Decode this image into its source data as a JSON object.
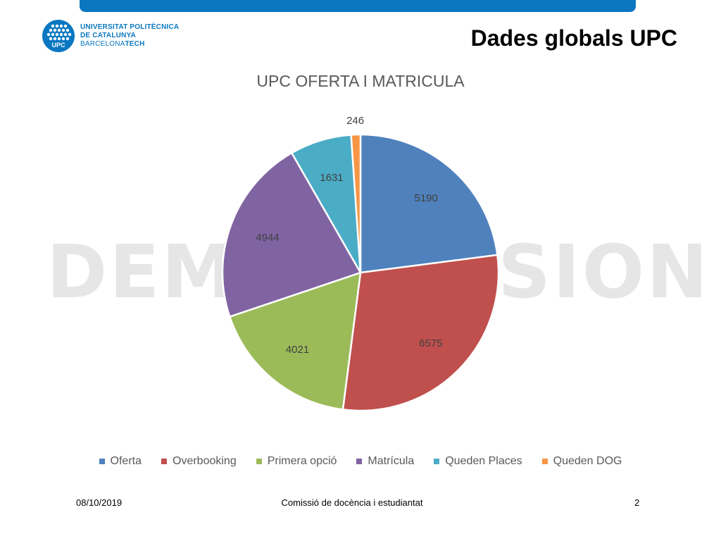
{
  "header": {
    "logo": {
      "line1": "UNIVERSITAT POLITÈCNICA",
      "line2": "DE CATALUNYA",
      "line3_a": "BARCELONA",
      "line3_b": "TECH",
      "emblem_text": "UPC"
    },
    "slide_title": "Dades globals UPC"
  },
  "watermark": "DEMO VERSION",
  "chart_data": {
    "type": "pie",
    "title": "UPC OFERTA I MATRICULA",
    "categories": [
      "Oferta",
      "Overbooking",
      "Primera opció",
      "Matrícula",
      "Queden Places",
      "Queden DOG"
    ],
    "values": [
      5190,
      6575,
      4021,
      4944,
      1631,
      246
    ],
    "colors": [
      "#4f81bd",
      "#c0504d",
      "#9bbb59",
      "#8064a2",
      "#4bacc6",
      "#f79646"
    ],
    "legend_position": "bottom",
    "start_angle": "top, clockwise"
  },
  "footer": {
    "date": "08/10/2019",
    "center": "Comissió de docència i estudiantat",
    "page": "2"
  },
  "colors": {
    "brand_blue": "#0a77c0"
  }
}
